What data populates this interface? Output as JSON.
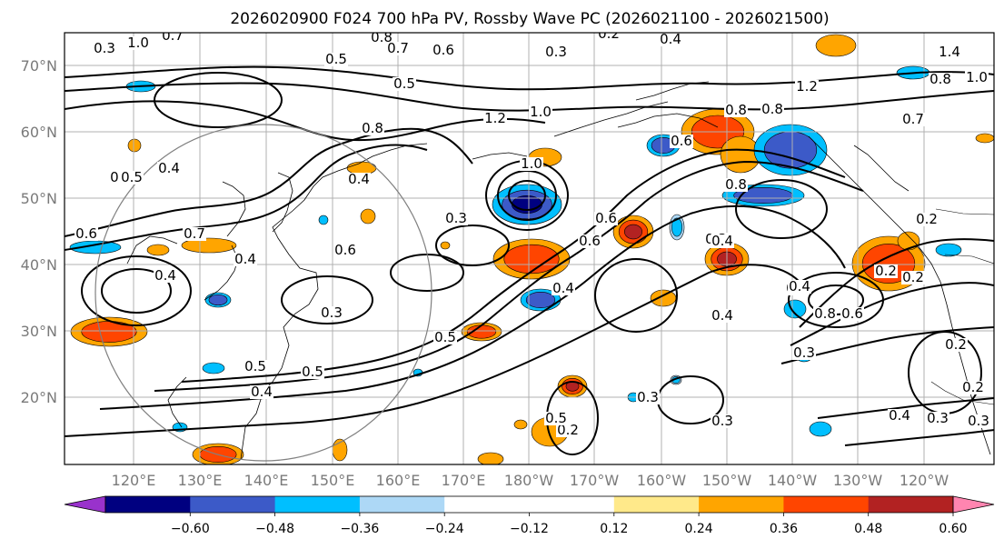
{
  "figure": {
    "title": "2026020900 F024 700 hPa PV, Rossby Wave PC (2026021100 - 2026021500)"
  },
  "map": {
    "lat_labels": [
      "70°N",
      "60°N",
      "50°N",
      "40°N",
      "30°N",
      "20°N"
    ],
    "lon_labels": [
      "120°E",
      "130°E",
      "140°E",
      "150°E",
      "160°E",
      "170°E",
      "180°W",
      "170°W",
      "160°W",
      "150°W",
      "140°W",
      "130°W",
      "120°W"
    ],
    "contour_labels": [
      "1.0",
      "0.7",
      "0.8",
      "0.7",
      "0.6",
      "0.5",
      "0.3",
      "0.2",
      "0.4",
      "0.5",
      "0.8",
      "0.6",
      "1.2",
      "0.8",
      "0.7",
      "1.4",
      "1.0",
      "1.2",
      "0.8",
      "1.0",
      "0.8",
      "0.8",
      "0.6",
      "0.5",
      "0.4",
      "0.5",
      "0.6",
      "0.7",
      "0.4",
      "0.4",
      "0.3",
      "1.0",
      "0.6",
      "0.6",
      "0.4",
      "0.3",
      "0.3",
      "0.4",
      "0.5",
      "0.8",
      "0.6",
      "0.2",
      "0.3",
      "0.4",
      "0.6",
      "0.5",
      "0.4",
      "0.2",
      "0.5",
      "0.3",
      "0.3",
      "0.4",
      "0.3",
      "0.3",
      "0.2",
      "0.2",
      "0.2",
      "0.3",
      "0.4",
      "0.2",
      "0.5",
      "0.4"
    ]
  },
  "colorbar": {
    "colors": [
      "#9932CC",
      "#000080",
      "#3C5AC8",
      "#00BFFF",
      "#ADD8F6",
      "#FFFFFF",
      "#FFFFFF",
      "#FFE98A",
      "#FFA500",
      "#FF4500",
      "#B22222",
      "#FF85B0"
    ],
    "tick_labels": [
      "−0.60",
      "−0.48",
      "−0.36",
      "−0.24",
      "−0.12",
      "0.12",
      "0.24",
      "0.36",
      "0.48",
      "0.60"
    ]
  }
}
